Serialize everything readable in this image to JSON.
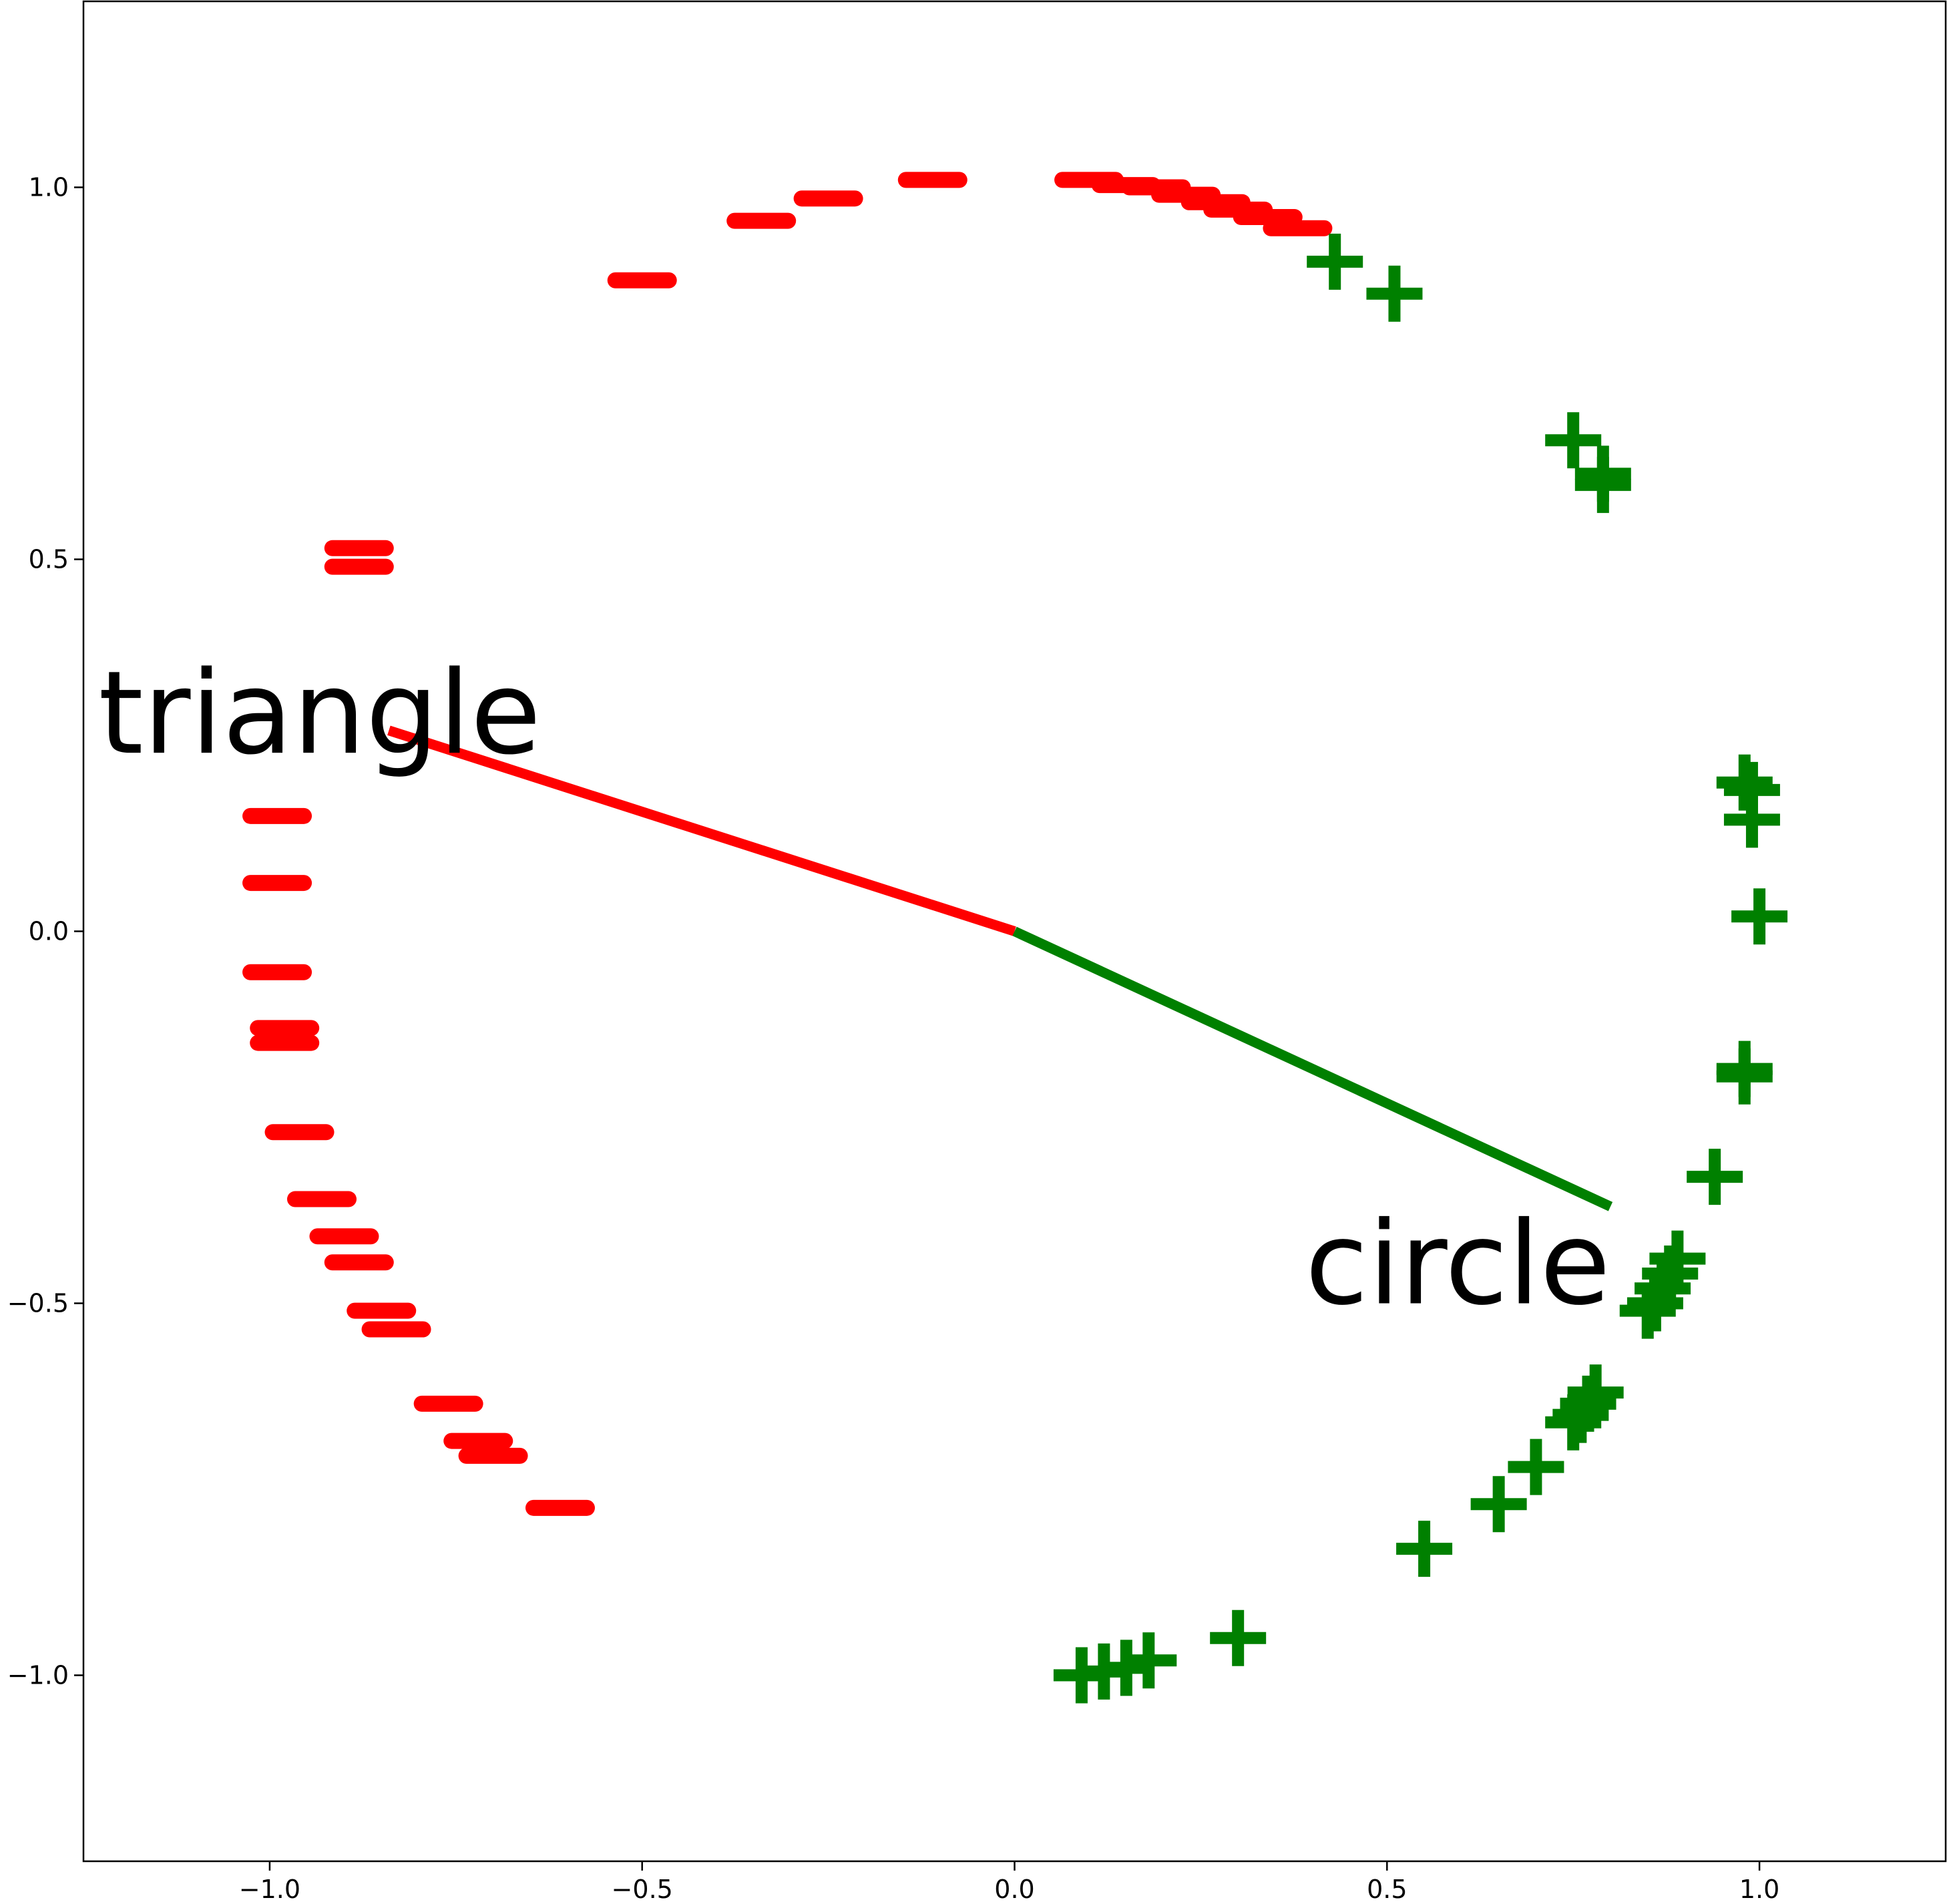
{
  "chart_data": {
    "type": "scatter",
    "title": "",
    "xlabel": "",
    "ylabel": "",
    "xlim": [
      -1.25,
      1.25
    ],
    "ylim": [
      -1.25,
      1.25
    ],
    "grid": false,
    "x_ticks": [
      {
        "value": -1.0,
        "label": "−1.0"
      },
      {
        "value": -0.5,
        "label": "−0.5"
      },
      {
        "value": 0.0,
        "label": "0.0"
      },
      {
        "value": 0.5,
        "label": "0.5"
      },
      {
        "value": 1.0,
        "label": "1.0"
      }
    ],
    "y_ticks": [
      {
        "value": -1.0,
        "label": "−1.0"
      },
      {
        "value": -0.5,
        "label": "−0.5"
      },
      {
        "value": 0.0,
        "label": "0.0"
      },
      {
        "value": 0.5,
        "label": "0.5"
      },
      {
        "value": 1.0,
        "label": "1.0"
      }
    ],
    "series": [
      {
        "name": "triangle",
        "marker": "minus",
        "color": "#ff0000",
        "points": [
          [
            -0.5,
            0.875
          ],
          [
            -0.34,
            0.955
          ],
          [
            -0.25,
            0.985
          ],
          [
            -0.11,
            1.01
          ],
          [
            -0.88,
            0.515
          ],
          [
            -0.88,
            0.49
          ],
          [
            -0.99,
            0.155
          ],
          [
            -0.99,
            0.065
          ],
          [
            -0.99,
            -0.055
          ],
          [
            -0.98,
            -0.13
          ],
          [
            -0.98,
            -0.15
          ],
          [
            -0.96,
            -0.27
          ],
          [
            -0.93,
            -0.36
          ],
          [
            -0.9,
            -0.41
          ],
          [
            -0.88,
            -0.445
          ],
          [
            -0.85,
            -0.51
          ],
          [
            -0.83,
            -0.535
          ],
          [
            -0.76,
            -0.635
          ],
          [
            -0.72,
            -0.685
          ],
          [
            -0.7,
            -0.705
          ],
          [
            -0.61,
            -0.775
          ]
        ]
      },
      {
        "name": "triangle-arc",
        "marker": "minus",
        "color": "#ff0000",
        "points": [
          [
            0.1,
            1.01
          ],
          [
            0.15,
            1.003
          ],
          [
            0.19,
            1.0
          ],
          [
            0.23,
            0.99
          ],
          [
            0.27,
            0.98
          ],
          [
            0.3,
            0.97
          ],
          [
            0.34,
            0.96
          ],
          [
            0.38,
            0.945
          ]
        ]
      },
      {
        "name": "circle",
        "marker": "plus",
        "color": "#008000",
        "points": [
          [
            0.43,
            0.9
          ],
          [
            0.51,
            0.857
          ],
          [
            0.75,
            0.66
          ],
          [
            0.79,
            0.615
          ],
          [
            0.79,
            0.6
          ],
          [
            0.98,
            0.2
          ],
          [
            0.99,
            0.19
          ],
          [
            0.99,
            0.15
          ],
          [
            1.0,
            0.02
          ],
          [
            0.98,
            -0.185
          ],
          [
            0.98,
            -0.195
          ],
          [
            0.94,
            -0.33
          ],
          [
            0.89,
            -0.44
          ],
          [
            0.88,
            -0.46
          ],
          [
            0.87,
            -0.48
          ],
          [
            0.86,
            -0.5
          ],
          [
            0.85,
            -0.51
          ],
          [
            0.78,
            -0.62
          ],
          [
            0.77,
            -0.635
          ],
          [
            0.76,
            -0.65
          ],
          [
            0.75,
            -0.66
          ],
          [
            0.7,
            -0.72
          ],
          [
            0.65,
            -0.77
          ],
          [
            0.55,
            -0.83
          ],
          [
            0.3,
            -0.95
          ],
          [
            0.18,
            -0.98
          ],
          [
            0.15,
            -0.99
          ],
          [
            0.12,
            -0.995
          ],
          [
            0.09,
            -1.0
          ]
        ]
      }
    ],
    "lines": [
      {
        "name": "triangle-line",
        "color": "#ff0000",
        "points": [
          [
            0.0,
            0.0
          ],
          [
            -0.84,
            0.27
          ]
        ]
      },
      {
        "name": "circle-line",
        "color": "#008000",
        "points": [
          [
            0.0,
            0.0
          ],
          [
            0.8,
            -0.37
          ]
        ]
      }
    ],
    "annotations": [
      {
        "name": "triangle-annotation",
        "text": "triangle",
        "x": -1.23,
        "y": 0.24
      },
      {
        "name": "circle-annotation",
        "text": "circle",
        "x": 0.39,
        "y": -0.5
      }
    ]
  }
}
